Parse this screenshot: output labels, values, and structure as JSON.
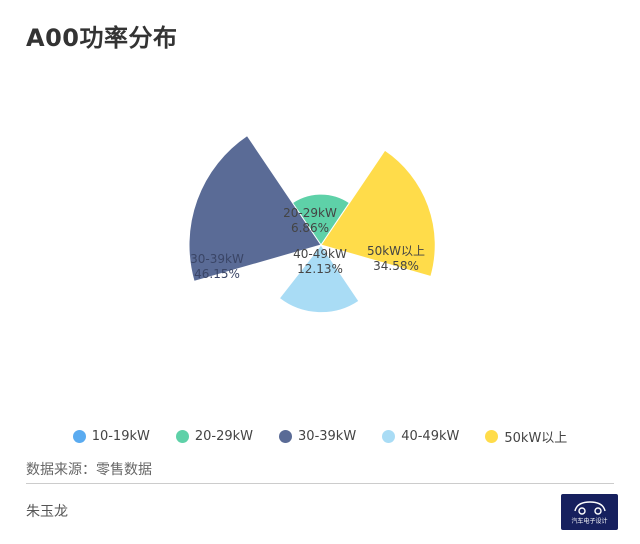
{
  "title": "A00功率分布",
  "source": "数据来源：零售数据",
  "author": "朱玉龙",
  "logo_text": "汽车电子设计",
  "chart_data": {
    "type": "nightingale-rose",
    "title": "A00功率分布",
    "categories": [
      "10-19kW",
      "20-29kW",
      "30-39kW",
      "40-49kW",
      "50kW以上"
    ],
    "values": [
      0.28,
      6.86,
      46.15,
      12.13,
      34.58
    ],
    "labels": [
      "",
      "6.86%",
      "46.15%",
      "12.13%",
      "34.58%"
    ],
    "colors": [
      "#5aabf0",
      "#5ed1a8",
      "#5a6b96",
      "#a9dcf5",
      "#ffdc4a"
    ],
    "legend_position": "bottom",
    "unit": "%"
  }
}
